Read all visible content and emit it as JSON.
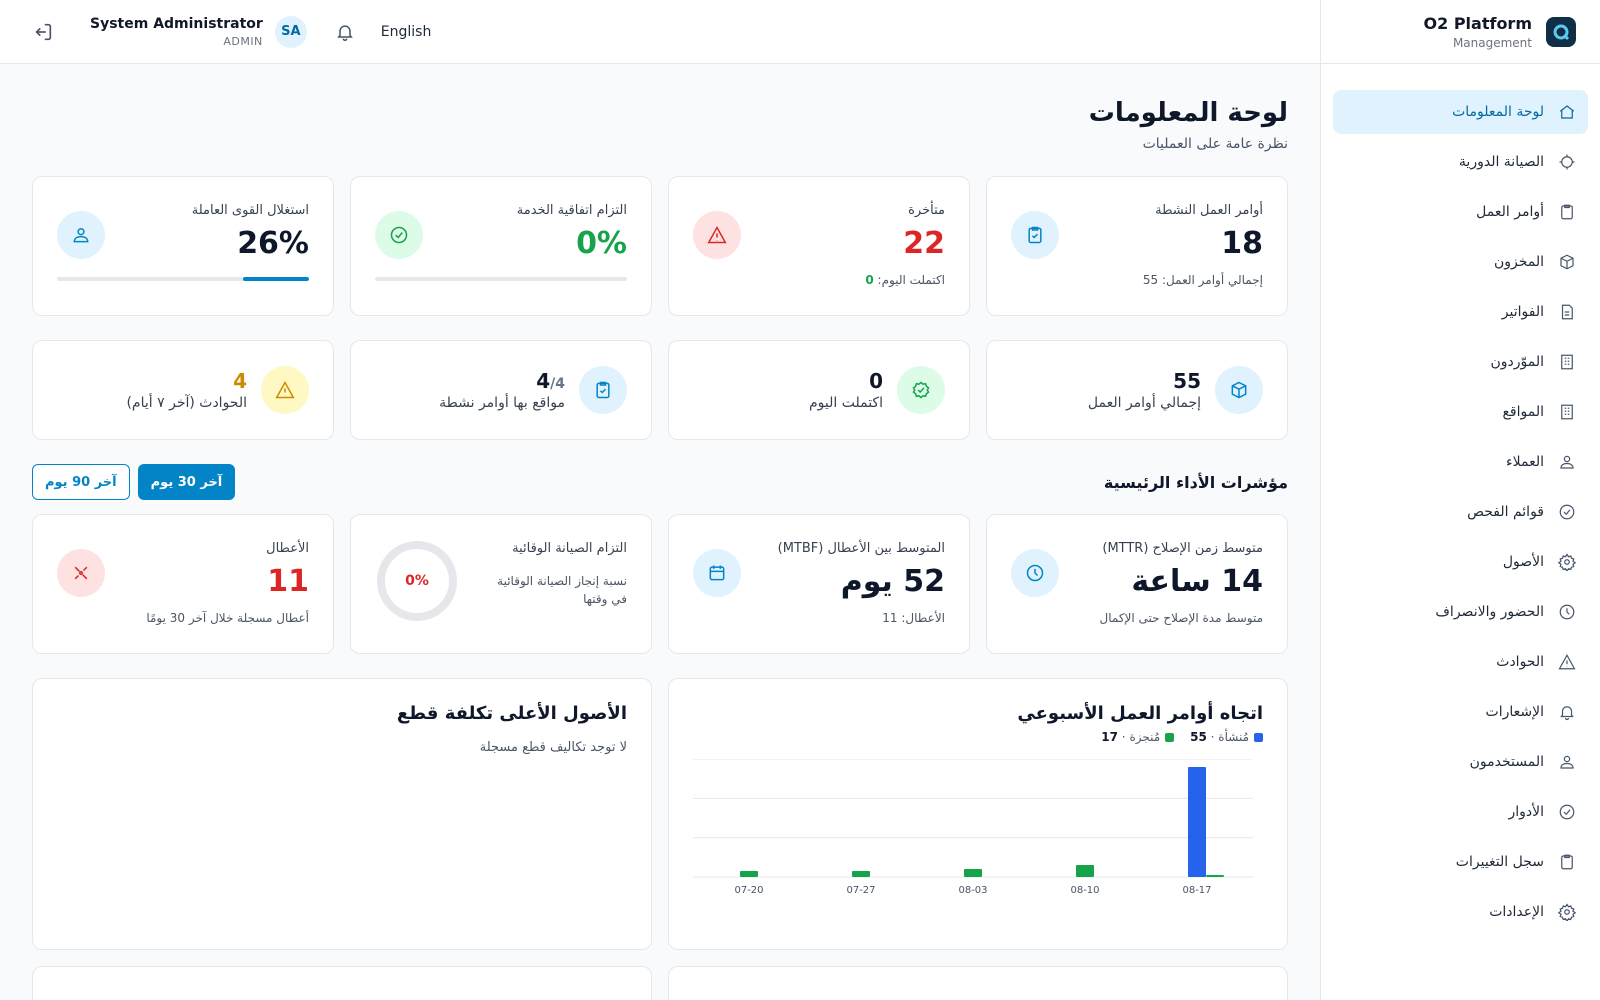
{
  "brand": {
    "name": "O2 Platform",
    "sub": "Management"
  },
  "topbar": {
    "user_name": "System Administrator",
    "user_role": "ADMIN",
    "avatar": "SA",
    "language": "English"
  },
  "nav": [
    {
      "label": "لوحة المعلومات",
      "icon": "home-icon",
      "active": true
    },
    {
      "label": "الصيانة الدورية",
      "icon": "gear-outline-icon"
    },
    {
      "label": "أوامر العمل",
      "icon": "clipboard-icon"
    },
    {
      "label": "المخزون",
      "icon": "box-icon"
    },
    {
      "label": "الفواتير",
      "icon": "document-icon"
    },
    {
      "label": "الموّردون",
      "icon": "building-icon"
    },
    {
      "label": "المواقع",
      "icon": "building-icon"
    },
    {
      "label": "العملاء",
      "icon": "users-icon"
    },
    {
      "label": "قوائم الفحص",
      "icon": "check-circle-icon"
    },
    {
      "label": "الأصول",
      "icon": "cog-icon"
    },
    {
      "label": "الحضور والانصراف",
      "icon": "clock-icon"
    },
    {
      "label": "الحوادث",
      "icon": "warning-icon"
    },
    {
      "label": "الإشعارات",
      "icon": "bell-icon"
    },
    {
      "label": "المستخدمون",
      "icon": "users-icon"
    },
    {
      "label": "الأدوار",
      "icon": "check-circle-icon"
    },
    {
      "label": "سجل التغييرات",
      "icon": "clipboard-icon"
    },
    {
      "label": "الإعدادات",
      "icon": "cog-icon"
    }
  ],
  "page": {
    "title": "لوحة المعلومات",
    "subtitle": "نظرة عامة على العمليات"
  },
  "stats": [
    {
      "label": "أوامر العمل النشطة",
      "value": "18",
      "foot": "إجمالي أوامر العمل: 55",
      "icon": "clipboard-check-icon",
      "color": "#0f172a",
      "icon_bg": "#e0f2fe",
      "icon_color": "#0284c7"
    },
    {
      "label": "متأخرة",
      "value": "22",
      "foot_prefix": "اكتملت اليوم: ",
      "foot_value": "0",
      "icon": "warning-icon",
      "color": "#dc2626",
      "icon_bg": "#fee2e2",
      "icon_color": "#dc2626"
    },
    {
      "label": "التزام اتفاقية الخدمة",
      "value": "0%",
      "progress": 0,
      "icon": "check-circle-icon",
      "color": "#16a34a",
      "icon_bg": "#dcfce7",
      "icon_color": "#16a34a"
    },
    {
      "label": "استغلال القوى العاملة",
      "value": "26%",
      "progress": 26,
      "icon": "users-icon",
      "color": "#0f172a",
      "icon_bg": "#e0f2fe",
      "icon_color": "#0284c7"
    }
  ],
  "mini": [
    {
      "value": "55",
      "label": "إجمالي أوامر العمل",
      "icon": "box-icon",
      "icon_bg": "#e0f2fe",
      "icon_color": "#0284c7",
      "color": "#0f172a"
    },
    {
      "value": "0",
      "label": "اكتملت اليوم",
      "icon": "check-badge-icon",
      "icon_bg": "#dcfce7",
      "icon_color": "#16a34a",
      "color": "#0f172a"
    },
    {
      "value": "4",
      "value_suffix": "/4",
      "label": "مواقع بها أوامر نشطة",
      "icon": "clipboard-check-icon",
      "icon_bg": "#e0f2fe",
      "icon_color": "#0284c7",
      "color": "#0f172a"
    },
    {
      "value": "4",
      "label": "الحوادث (آخر ٧ أيام)",
      "icon": "warning-icon",
      "icon_bg": "#fef9c3",
      "icon_color": "#ca8a04",
      "color": "#ca8a04"
    }
  ],
  "kpi": {
    "title": "مؤشرات الأداء الرئيسية",
    "range_30": "آخر 30 يوم",
    "range_90": "آخر 90 يوم",
    "cards": [
      {
        "label": "متوسط زمن الإصلاح (MTTR)",
        "value": "14 ساعة",
        "foot": "متوسط مدة الإصلاح حتى الإكمال",
        "icon": "clock-icon",
        "icon_bg": "#e0f2fe",
        "icon_color": "#0284c7",
        "color": "#0f172a"
      },
      {
        "label": "المتوسط بين الأعطال (MTBF)",
        "value": "52 يوم",
        "foot": "الأعطال: 11",
        "icon": "calendar-icon",
        "icon_bg": "#e0f2fe",
        "icon_color": "#0284c7",
        "color": "#0f172a"
      },
      {
        "label": "التزام الصيانة الوقائية",
        "ring_value": "0%",
        "ring_fraction": 0,
        "foot": "نسبة إنجاز الصيانة الوقائية في وقتها"
      },
      {
        "label": "الأعطال",
        "value": "11",
        "foot": "أعطال مسجلة خلال آخر 30 يومًا",
        "icon": "broken-tool-icon",
        "icon_bg": "#fee2e2",
        "icon_color": "#dc2626",
        "color": "#dc2626"
      }
    ]
  },
  "panels": {
    "trend_title": "اتجاه أوامر العمل الأسبوعي",
    "legend_created_label": "مُنشأة",
    "legend_created_value": "55",
    "legend_done_label": "مُنجزة",
    "legend_done_value": "17",
    "costly_title": "الأصول الأعلى تكلفة قطع",
    "costly_empty": "لا توجد تكاليف قطع مسجلة"
  },
  "chart_data": {
    "type": "bar",
    "categories": [
      "07-20",
      "07-27",
      "08-03",
      "08-10",
      "08-17"
    ],
    "series": [
      {
        "name": "مُنشأة",
        "color": "#2563eb",
        "values": [
          0,
          0,
          0,
          0,
          55
        ]
      },
      {
        "name": "مُنجزة",
        "color": "#16a34a",
        "values": [
          3,
          3,
          4,
          6,
          1
        ]
      }
    ],
    "ylim": [
      0,
      55
    ],
    "grid": true
  },
  "colors": {
    "accent": "#0284c7",
    "danger": "#dc2626",
    "success": "#16a34a",
    "warning": "#ca8a04"
  }
}
